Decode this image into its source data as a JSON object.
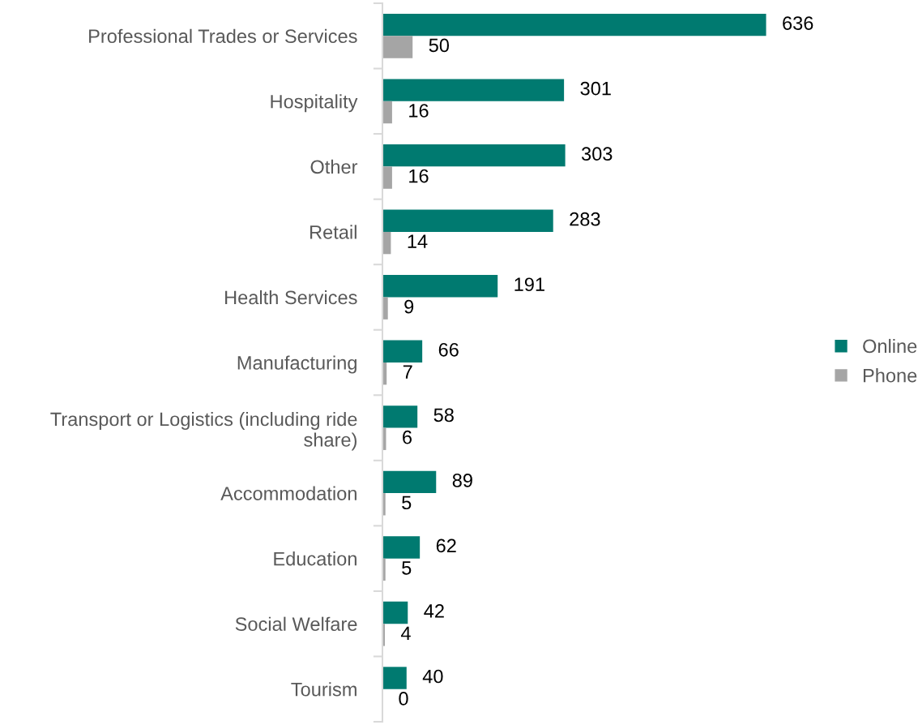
{
  "chart_data": {
    "type": "bar",
    "orientation": "horizontal",
    "categories": [
      "Professional Trades or Services",
      "Hospitality",
      "Other",
      "Retail",
      "Health Services",
      "Manufacturing",
      "Transport or Logistics (including ride share)",
      "Accommodation",
      "Education",
      "Social Welfare",
      "Tourism"
    ],
    "series": [
      {
        "name": "Online",
        "color": "#007a70",
        "values": [
          636,
          301,
          303,
          283,
          191,
          66,
          58,
          89,
          62,
          42,
          40
        ]
      },
      {
        "name": "Phone",
        "color": "#a5a5a5",
        "values": [
          50,
          16,
          16,
          14,
          9,
          7,
          6,
          5,
          5,
          4,
          0
        ]
      }
    ],
    "data_labels": true,
    "legend": "right",
    "grid": false
  }
}
